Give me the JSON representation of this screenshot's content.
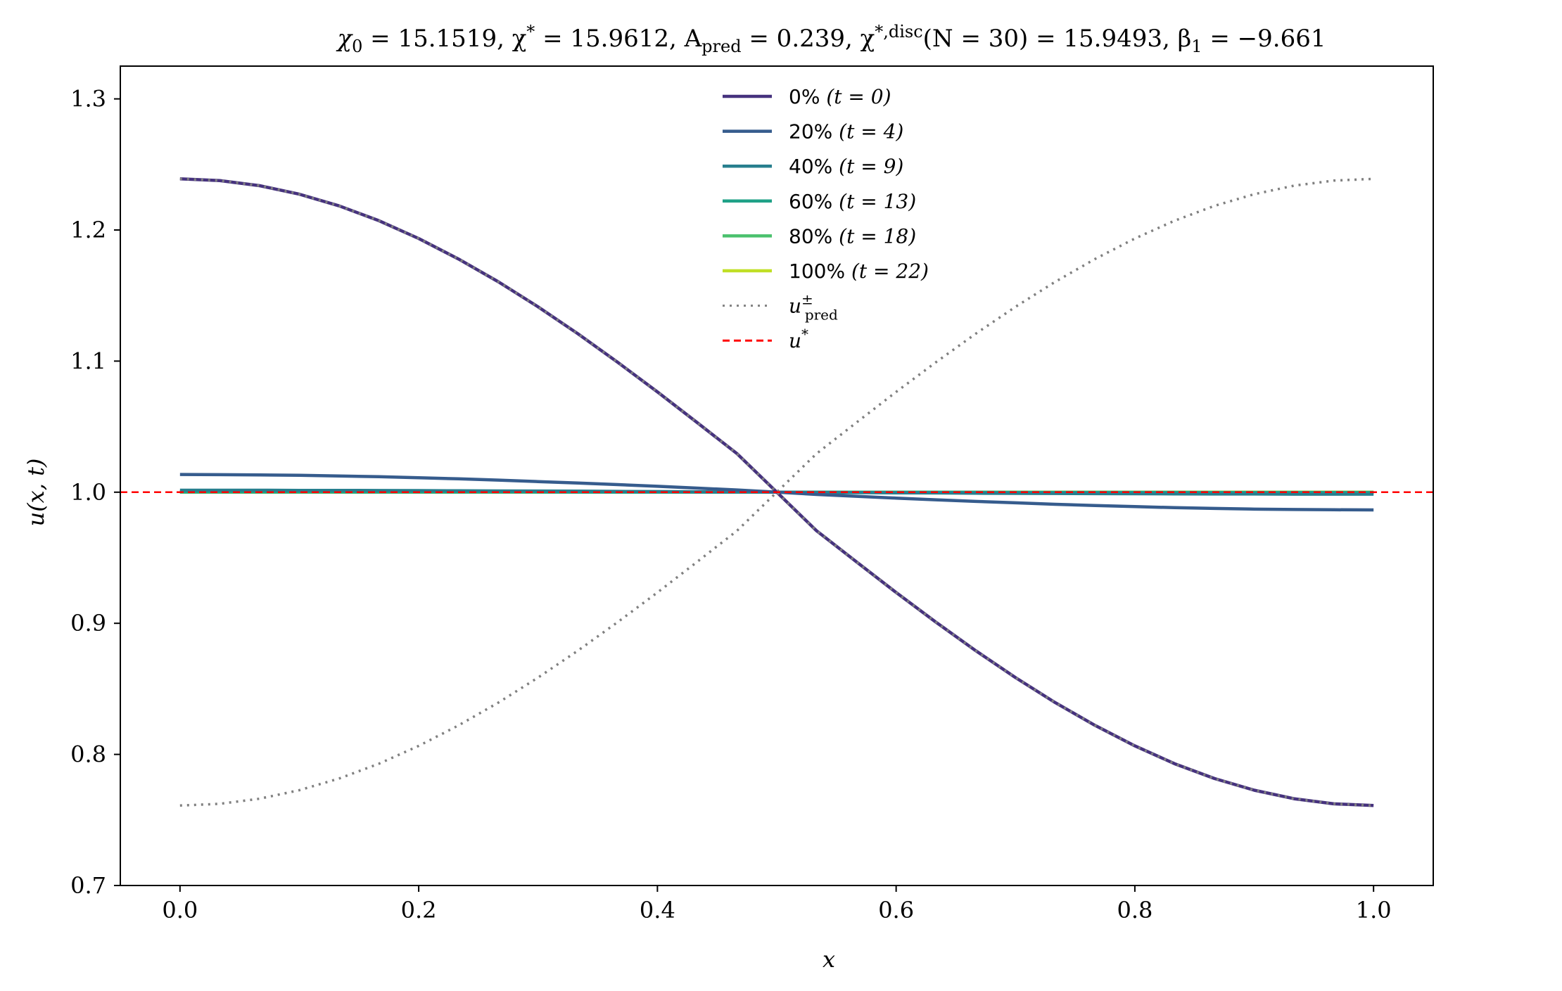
{
  "chart_data": {
    "type": "line",
    "title": "χ₀ = 15.1519,  χ* = 15.9612,  A_pred = 0.239,  χ*,disc(N = 30) = 15.9493,  β₁ = −9.661",
    "title_parts": {
      "p1": "χ",
      "p1_sub": "0",
      "p2": " = 15.1519,  χ",
      "p2_sup": "*",
      "p3": " = 15.9612,  A",
      "p3_sub": "pred",
      "p4": " = 0.239,  χ",
      "p4_sup": "*,disc",
      "p5": "(N = 30) = 15.9493,  β",
      "p5_sub": "1",
      "p6": " = −9.661"
    },
    "xlabel": "x",
    "ylabel": "u(x, t)",
    "xlim": [
      -0.05,
      1.05
    ],
    "ylim": [
      0.7,
      1.325
    ],
    "xticks": [
      0.0,
      0.2,
      0.4,
      0.6,
      0.8,
      1.0
    ],
    "xtick_labels": [
      "0.0",
      "0.2",
      "0.4",
      "0.6",
      "0.8",
      "1.0"
    ],
    "yticks": [
      0.7,
      0.8,
      0.9,
      1.0,
      1.1,
      1.2,
      1.3
    ],
    "ytick_labels": [
      "0.7",
      "0.8",
      "0.9",
      "1.0",
      "1.1",
      "1.2",
      "1.3"
    ],
    "grid": false,
    "legend_position": "top-center",
    "x": [
      0.0,
      0.0333,
      0.0667,
      0.1,
      0.1333,
      0.1667,
      0.2,
      0.2333,
      0.2667,
      0.3,
      0.3333,
      0.3667,
      0.4,
      0.4333,
      0.4667,
      0.5,
      0.5333,
      0.5667,
      0.6,
      0.6333,
      0.6667,
      0.7,
      0.7333,
      0.7667,
      0.8,
      0.8333,
      0.8667,
      0.9,
      0.9333,
      0.9667,
      1.0
    ],
    "series": [
      {
        "name": "0%",
        "t_label": "t = 0",
        "color": "#46327e",
        "style": "solid",
        "values": [
          1.239,
          1.2377,
          1.2338,
          1.2273,
          1.2184,
          1.2071,
          1.1935,
          1.1779,
          1.1605,
          1.1414,
          1.1209,
          1.0991,
          1.0765,
          1.0531,
          1.0294,
          1.0,
          0.9706,
          0.9469,
          0.9235,
          0.9009,
          0.8791,
          0.8586,
          0.8395,
          0.8221,
          0.8065,
          0.7929,
          0.7816,
          0.7727,
          0.7662,
          0.7623,
          0.761
        ]
      },
      {
        "name": "20%",
        "t_label": "t = 4",
        "color": "#365c8d",
        "style": "solid",
        "values": [
          1.0135,
          1.0134,
          1.0132,
          1.0129,
          1.0124,
          1.0118,
          1.011,
          1.0102,
          1.0092,
          1.0081,
          1.007,
          1.0058,
          1.0045,
          1.0031,
          1.0017,
          1.0,
          0.9983,
          0.9969,
          0.9955,
          0.9942,
          0.993,
          0.9919,
          0.9908,
          0.9898,
          0.989,
          0.9882,
          0.9876,
          0.9871,
          0.9868,
          0.9866,
          0.9865
        ]
      },
      {
        "name": "40%",
        "t_label": "t = 9",
        "color": "#277f8e",
        "style": "solid",
        "values": [
          1.0015,
          1.0015,
          1.0015,
          1.0014,
          1.0014,
          1.0013,
          1.0012,
          1.0011,
          1.001,
          1.0009,
          1.0008,
          1.0006,
          1.0005,
          1.0003,
          1.0002,
          1.0,
          0.9998,
          0.9997,
          0.9995,
          0.9994,
          0.9992,
          0.9991,
          0.999,
          0.9989,
          0.9988,
          0.9987,
          0.9986,
          0.9986,
          0.9985,
          0.9985,
          0.9985
        ]
      },
      {
        "name": "60%",
        "t_label": "t = 13",
        "color": "#1fa187",
        "style": "solid",
        "values": [
          1.0003,
          1.0003,
          1.0003,
          1.0003,
          1.0003,
          1.0002,
          1.0002,
          1.0002,
          1.0002,
          1.0002,
          1.0001,
          1.0001,
          1.0001,
          1.0001,
          1.0,
          1.0,
          1.0,
          0.9999,
          0.9999,
          0.9999,
          0.9999,
          0.9998,
          0.9998,
          0.9998,
          0.9998,
          0.9998,
          0.9997,
          0.9997,
          0.9997,
          0.9997,
          0.9997
        ]
      },
      {
        "name": "80%",
        "t_label": "t = 18",
        "color": "#4ac16d",
        "style": "solid",
        "values": [
          1.0001,
          1.0001,
          1.0001,
          1.0001,
          1.0001,
          1.0001,
          1.0001,
          1.0001,
          1.0001,
          1.0001,
          1.0,
          1.0,
          1.0,
          1.0,
          1.0,
          1.0,
          1.0,
          1.0,
          1.0,
          1.0,
          1.0,
          0.9999,
          0.9999,
          0.9999,
          0.9999,
          0.9999,
          0.9999,
          0.9999,
          0.9999,
          0.9999,
          0.9999
        ]
      },
      {
        "name": "100%",
        "t_label": "t = 22",
        "color": "#c0df25",
        "style": "solid",
        "values": [
          1.0,
          1.0,
          1.0,
          1.0,
          1.0,
          1.0,
          1.0,
          1.0,
          1.0,
          1.0,
          1.0,
          1.0,
          1.0,
          1.0,
          1.0,
          1.0,
          1.0,
          1.0,
          1.0,
          1.0,
          1.0,
          1.0,
          1.0,
          1.0,
          1.0,
          1.0,
          1.0,
          1.0,
          1.0,
          1.0,
          1.0
        ]
      },
      {
        "name": "u_pred (upper)",
        "color": "#808080",
        "style": "dotted",
        "values": [
          0.761,
          0.7623,
          0.7662,
          0.7727,
          0.7816,
          0.7929,
          0.8065,
          0.8221,
          0.8395,
          0.8586,
          0.8791,
          0.9009,
          0.9235,
          0.9469,
          0.9706,
          1.0,
          1.0294,
          1.0531,
          1.0765,
          1.0991,
          1.1209,
          1.1414,
          1.1605,
          1.1779,
          1.1935,
          1.2071,
          1.2184,
          1.2273,
          1.2338,
          1.2377,
          1.239
        ]
      },
      {
        "name": "u_pred (lower)",
        "color": "#808080",
        "style": "dotted",
        "values": [
          1.239,
          1.2377,
          1.2338,
          1.2273,
          1.2184,
          1.2071,
          1.1935,
          1.1779,
          1.1605,
          1.1414,
          1.1209,
          1.0991,
          1.0765,
          1.0531,
          1.0294,
          1.0,
          0.9706,
          0.9469,
          0.9235,
          0.9009,
          0.8791,
          0.8586,
          0.8395,
          0.8221,
          0.8065,
          0.7929,
          0.7816,
          0.7727,
          0.7662,
          0.7623,
          0.761
        ]
      }
    ],
    "reference_line": {
      "name": "u*",
      "y": 1.0,
      "color": "#ff0000",
      "style": "dashed"
    },
    "legend": [
      {
        "text": "0%",
        "math": "(t = 0)",
        "color": "#46327e",
        "style": "solid"
      },
      {
        "text": "20%",
        "math": "(t = 4)",
        "color": "#365c8d",
        "style": "solid"
      },
      {
        "text": "40%",
        "math": "(t = 9)",
        "color": "#277f8e",
        "style": "solid"
      },
      {
        "text": "60%",
        "math": "(t = 13)",
        "color": "#1fa187",
        "style": "solid"
      },
      {
        "text": "80%",
        "math": "(t = 18)",
        "color": "#4ac16d",
        "style": "solid"
      },
      {
        "text": "100%",
        "math": "(t = 22)",
        "color": "#c0df25",
        "style": "solid"
      },
      {
        "text": "",
        "math": "u",
        "sup": "±",
        "sub": "pred",
        "color": "#808080",
        "style": "dotted"
      },
      {
        "text": "",
        "math": "u",
        "sup": "*",
        "sub": "",
        "color": "#ff0000",
        "style": "dashed"
      }
    ]
  }
}
